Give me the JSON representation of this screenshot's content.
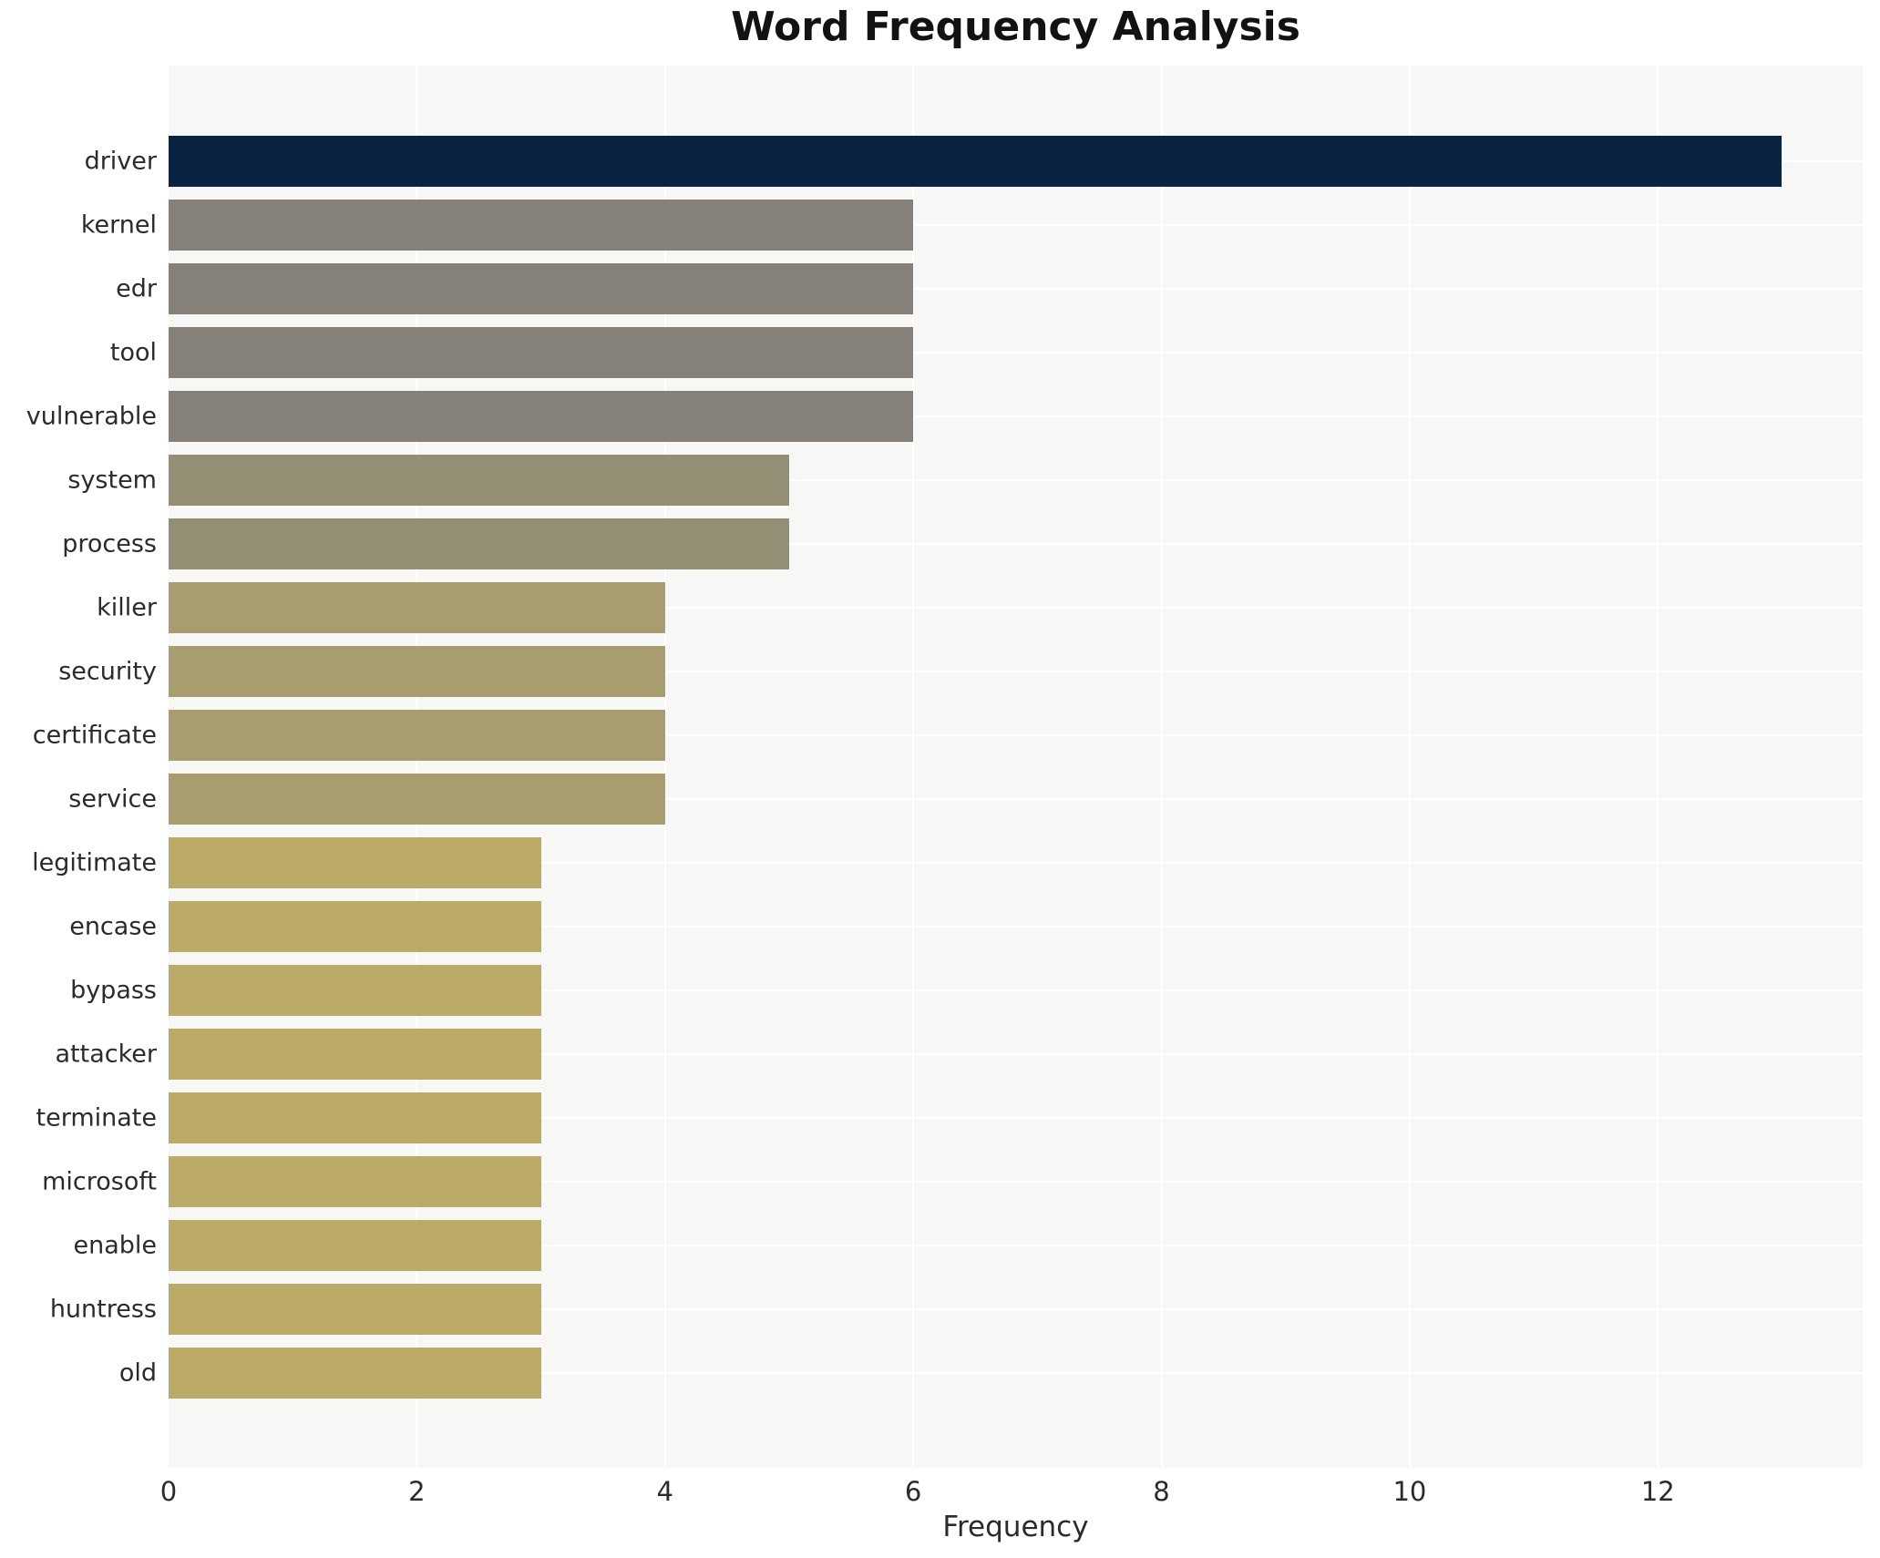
{
  "title": "Word Frequency Analysis",
  "chart_data": {
    "type": "bar",
    "orientation": "horizontal",
    "title": "Word Frequency Analysis",
    "xlabel": "Frequency",
    "ylabel": "",
    "categories": [
      "driver",
      "kernel",
      "edr",
      "tool",
      "vulnerable",
      "system",
      "process",
      "killer",
      "security",
      "certificate",
      "service",
      "legitimate",
      "encase",
      "bypass",
      "attacker",
      "terminate",
      "microsoft",
      "enable",
      "huntress",
      "old"
    ],
    "values": [
      13,
      6,
      6,
      6,
      6,
      5,
      5,
      4,
      4,
      4,
      4,
      3,
      3,
      3,
      3,
      3,
      3,
      3,
      3,
      3
    ],
    "xlim": [
      0,
      13.65
    ],
    "xticks": [
      0,
      2,
      4,
      6,
      8,
      10,
      12
    ],
    "grid": true,
    "legend": false,
    "plot_background": "#f7f7f6",
    "grid_color": "#ffffff",
    "colors_by_value": {
      "13": "#0b2342",
      "6": "#858078",
      "5": "#948e74",
      "4": "#a79d6e",
      "3": "#bcab66"
    }
  }
}
